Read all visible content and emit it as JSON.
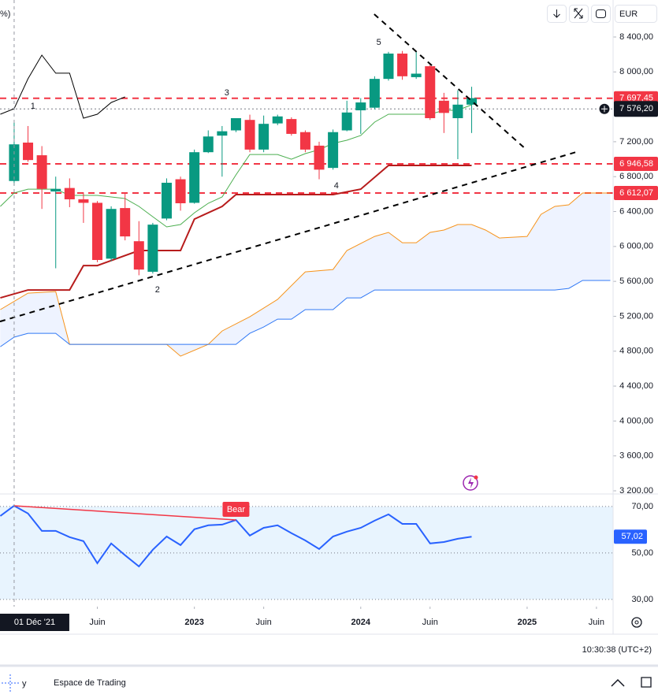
{
  "chart_data": {
    "type": "candlestick",
    "header_fragment": "%)",
    "currency": "EUR",
    "up_color": "#089981",
    "down_color": "#f23645",
    "xlim": [
      -1.02,
      43.2
    ],
    "ylim": [
      3164,
      8824
    ],
    "xticks": [
      {
        "value": 6,
        "label": "Juin"
      },
      {
        "value": 13,
        "label": "2023"
      },
      {
        "value": 18,
        "label": "Juin"
      },
      {
        "value": 25,
        "label": "2024"
      },
      {
        "value": 30,
        "label": "Juin"
      },
      {
        "value": 37,
        "label": "2025"
      },
      {
        "value": 42,
        "label": "Juin"
      }
    ],
    "crosshair": {
      "value": 0,
      "label": "01 Déc '21"
    },
    "yticks": [
      {
        "value": 3200,
        "label": "3 200,00"
      },
      {
        "value": 3600,
        "label": "3 600,00"
      },
      {
        "value": 4000,
        "label": "4 000,00"
      },
      {
        "value": 4400,
        "label": "4 400,00"
      },
      {
        "value": 4800,
        "label": "4 800,00"
      },
      {
        "value": 5200,
        "label": "5 200,00"
      },
      {
        "value": 5600,
        "label": "5 600,00"
      },
      {
        "value": 6000,
        "label": "6 000,00"
      },
      {
        "value": 6400,
        "label": "6 400,00"
      },
      {
        "value": 6800,
        "label": "6 800,00"
      },
      {
        "value": 7200,
        "label": "7 200,00"
      },
      {
        "value": 8000,
        "label": "8 000,00"
      },
      {
        "value": 8400,
        "label": "8 400,00"
      }
    ],
    "x": [
      0,
      1,
      2,
      3,
      4,
      5,
      6,
      7,
      8,
      9,
      10,
      11,
      12,
      13,
      14,
      15,
      16,
      17,
      18,
      19,
      20,
      21,
      22,
      23,
      24,
      25,
      26,
      27,
      28,
      29,
      30,
      31,
      32,
      33
    ],
    "open": [
      6750,
      7190,
      7045,
      6630,
      6670,
      6540,
      6500,
      5860,
      6440,
      6060,
      5710,
      6320,
      6770,
      6500,
      7080,
      7270,
      7330,
      7450,
      7110,
      7410,
      7460,
      7310,
      7155,
      6900,
      7330,
      7560,
      7590,
      7920,
      8210,
      7940,
      8065,
      7670,
      7470,
      7625
    ],
    "high": [
      7420,
      7380,
      7150,
      6800,
      6780,
      6620,
      6520,
      6460,
      6610,
      6290,
      6270,
      6780,
      6800,
      7110,
      7330,
      7380,
      7450,
      7510,
      7500,
      7510,
      7480,
      7330,
      7200,
      7340,
      7670,
      7700,
      7950,
      8230,
      8240,
      8240,
      8080,
      7760,
      7790,
      7830
    ],
    "low": [
      6700,
      6970,
      6430,
      5750,
      6450,
      6270,
      5820,
      5830,
      6070,
      5670,
      5690,
      6300,
      6410,
      6490,
      7070,
      6800,
      7310,
      7080,
      7080,
      7390,
      7270,
      7080,
      6770,
      6880,
      7320,
      7290,
      7570,
      7900,
      7910,
      7920,
      7450,
      7300,
      7000,
      7300
    ],
    "close": [
      7170,
      6990,
      6660,
      6660,
      6540,
      6500,
      5845,
      6430,
      6115,
      5735,
      6250,
      6730,
      6495,
      7080,
      7260,
      7320,
      7470,
      7110,
      7405,
      7490,
      7290,
      7110,
      6880,
      7310,
      7535,
      7650,
      7920,
      8210,
      7950,
      7980,
      7470,
      7530,
      7625,
      7700
    ],
    "lines": [
      {
        "color": "#f7931a",
        "width": 1,
        "x": [
          -1,
          1,
          3,
          4,
          11,
          12,
          14,
          15,
          17,
          19,
          21,
          23,
          24,
          26,
          27,
          28,
          29,
          30,
          31,
          32,
          33,
          34,
          35,
          37,
          38,
          39,
          40,
          41,
          43
        ],
        "values": [
          5276,
          5465,
          5483,
          4878,
          4878,
          4743,
          4878,
          5032,
          5194,
          5393,
          5709,
          5736,
          5953,
          6115,
          6161,
          6043,
          6043,
          6161,
          6188,
          6251,
          6251,
          6188,
          6097,
          6115,
          6368,
          6459,
          6477,
          6612,
          6612
        ]
      },
      {
        "color": "#3179f5",
        "width": 1,
        "x": [
          -1,
          0,
          1,
          3,
          4,
          16,
          17,
          18,
          19,
          20,
          21,
          23,
          24,
          25,
          26,
          39,
          40,
          41,
          43
        ],
        "values": [
          4851,
          4960,
          5005,
          5005,
          4878,
          4878,
          5005,
          5077,
          5167,
          5167,
          5276,
          5276,
          5411,
          5411,
          5501,
          5501,
          5519,
          5610,
          5610
        ]
      },
      {
        "color": "#4caf50",
        "width": 1,
        "x": [
          -1,
          0,
          1,
          3,
          4,
          6,
          7,
          8,
          9,
          10,
          11,
          12,
          13,
          14,
          15,
          16,
          17,
          18,
          19,
          20,
          21,
          22,
          23,
          24,
          25,
          26,
          27,
          28,
          30,
          31,
          32,
          33
        ],
        "values": [
          6459,
          6612,
          6657,
          6657,
          6585,
          6585,
          6567,
          6549,
          6459,
          6341,
          6224,
          6251,
          6386,
          6495,
          6567,
          6820,
          7054,
          7054,
          7054,
          7000,
          7064,
          7109,
          7181,
          7217,
          7271,
          7425,
          7515,
          7515,
          7515,
          7560,
          7560,
          7623
        ]
      },
      {
        "color": "#b71c1c",
        "width": 2,
        "x": [
          -1,
          1,
          4,
          5,
          6,
          9,
          12,
          13,
          15,
          16,
          23,
          25,
          27,
          33
        ],
        "values": [
          5411,
          5501,
          5501,
          5781,
          5781,
          5953,
          5953,
          6314,
          6459,
          6594,
          6594,
          6657,
          6928,
          6928
        ]
      },
      {
        "color": "#000000",
        "width": 1,
        "x": [
          -1,
          0,
          1,
          2,
          3,
          4,
          5,
          6,
          7,
          8
        ],
        "values": [
          7515,
          7578,
          7921,
          8192,
          7985,
          7985,
          7470,
          7515,
          7650,
          7714
        ]
      }
    ],
    "hlines": [
      {
        "value": 7697.45,
        "label": "7 697,45",
        "color": "#f23645"
      },
      {
        "value": 6946.58,
        "label": "6 946,58",
        "color": "#f23645"
      },
      {
        "value": 6612.07,
        "label": "6 612,07",
        "color": "#f23645"
      }
    ],
    "last_price": {
      "value": 7576.2,
      "label": "7 576,20"
    },
    "trendlines": [
      {
        "x": [
          25.97,
          36.76
        ],
        "y": [
          8662,
          7136
        ]
      },
      {
        "x": [
          -1.02,
          40.74
        ],
        "y": [
          5140,
          7091
        ]
      }
    ],
    "wave_labels": [
      {
        "text": "1",
        "x": 1.36,
        "y": 7605
      },
      {
        "text": "2",
        "x": 10.34,
        "y": 5501
      },
      {
        "text": "3",
        "x": 15.34,
        "y": 7759
      },
      {
        "text": "4",
        "x": 23.24,
        "y": 6693
      },
      {
        "text": "5",
        "x": 26.3,
        "y": 8337
      }
    ],
    "rsi": {
      "ylim": [
        26.9,
        75.4
      ],
      "yticks": [
        {
          "value": 30,
          "label": "30,00"
        },
        {
          "value": 50,
          "label": "50,00"
        },
        {
          "value": 70,
          "label": "70,00"
        }
      ],
      "color": "#2962ff",
      "x": [
        -1,
        0,
        1,
        2,
        3,
        4,
        5,
        6,
        7,
        8,
        9,
        10,
        11,
        12,
        13,
        14,
        15,
        16,
        17,
        18,
        19,
        20,
        21,
        22,
        23,
        24,
        25,
        26,
        27,
        28,
        29,
        30,
        31,
        32,
        33
      ],
      "values": [
        65.9,
        70.3,
        67,
        59.5,
        59.5,
        56.8,
        55.1,
        45.6,
        54.1,
        49,
        44.2,
        51.4,
        57.1,
        53.4,
        60.2,
        61.9,
        62.2,
        64.2,
        57.5,
        60.8,
        61.9,
        58.5,
        55.4,
        51.7,
        57.1,
        59.2,
        60.8,
        63.9,
        66.6,
        62.5,
        62.5,
        54.1,
        54.7,
        56.1,
        57.02
      ],
      "last_label": "57,02",
      "divergence": {
        "label": "Bear",
        "color": "#f23645",
        "x": [
          0,
          16
        ],
        "values": [
          70.3,
          64.2
        ]
      }
    }
  },
  "footer": {
    "time": "10:30:38 (UTC+2)",
    "workspace": "Espace de Trading",
    "logo_fragment": "y"
  }
}
